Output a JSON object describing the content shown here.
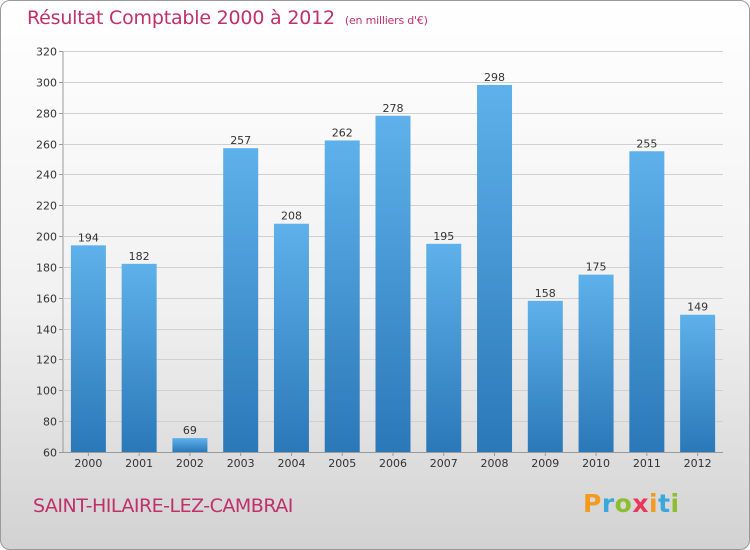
{
  "header": {
    "title": "Résultat Comptable 2000 à 2012",
    "unit": "(en milliers d'€)"
  },
  "footer": {
    "town": "SAINT-HILAIRE-LEZ-CAMBRAI",
    "logo_letters": [
      "P",
      "r",
      "o",
      "x",
      "i",
      "t",
      "i"
    ]
  },
  "colors": {
    "title": "#c0306a",
    "bar_top": "#5eb1ea",
    "bar_bottom": "#2b78b8",
    "grid": "#d0d0d0",
    "logo": [
      "#f39a1f",
      "#3aa8d8",
      "#8cbf2f",
      "#e8375a",
      "#f39a1f",
      "#3aa8d8",
      "#8cbf2f"
    ]
  },
  "chart_data": {
    "type": "bar",
    "title": "Résultat Comptable 2000 à 2012",
    "subtitle": "(en milliers d'€)",
    "categories": [
      "2000",
      "2001",
      "2002",
      "2003",
      "2004",
      "2005",
      "2006",
      "2007",
      "2008",
      "2009",
      "2010",
      "2011",
      "2012"
    ],
    "values": [
      194,
      182,
      69,
      257,
      208,
      262,
      278,
      195,
      298,
      158,
      175,
      255,
      149
    ],
    "ylim": [
      60,
      320
    ],
    "yticks": [
      60,
      80,
      100,
      120,
      140,
      160,
      180,
      200,
      220,
      240,
      260,
      280,
      300,
      320
    ],
    "grid": true,
    "data_labels": true
  }
}
